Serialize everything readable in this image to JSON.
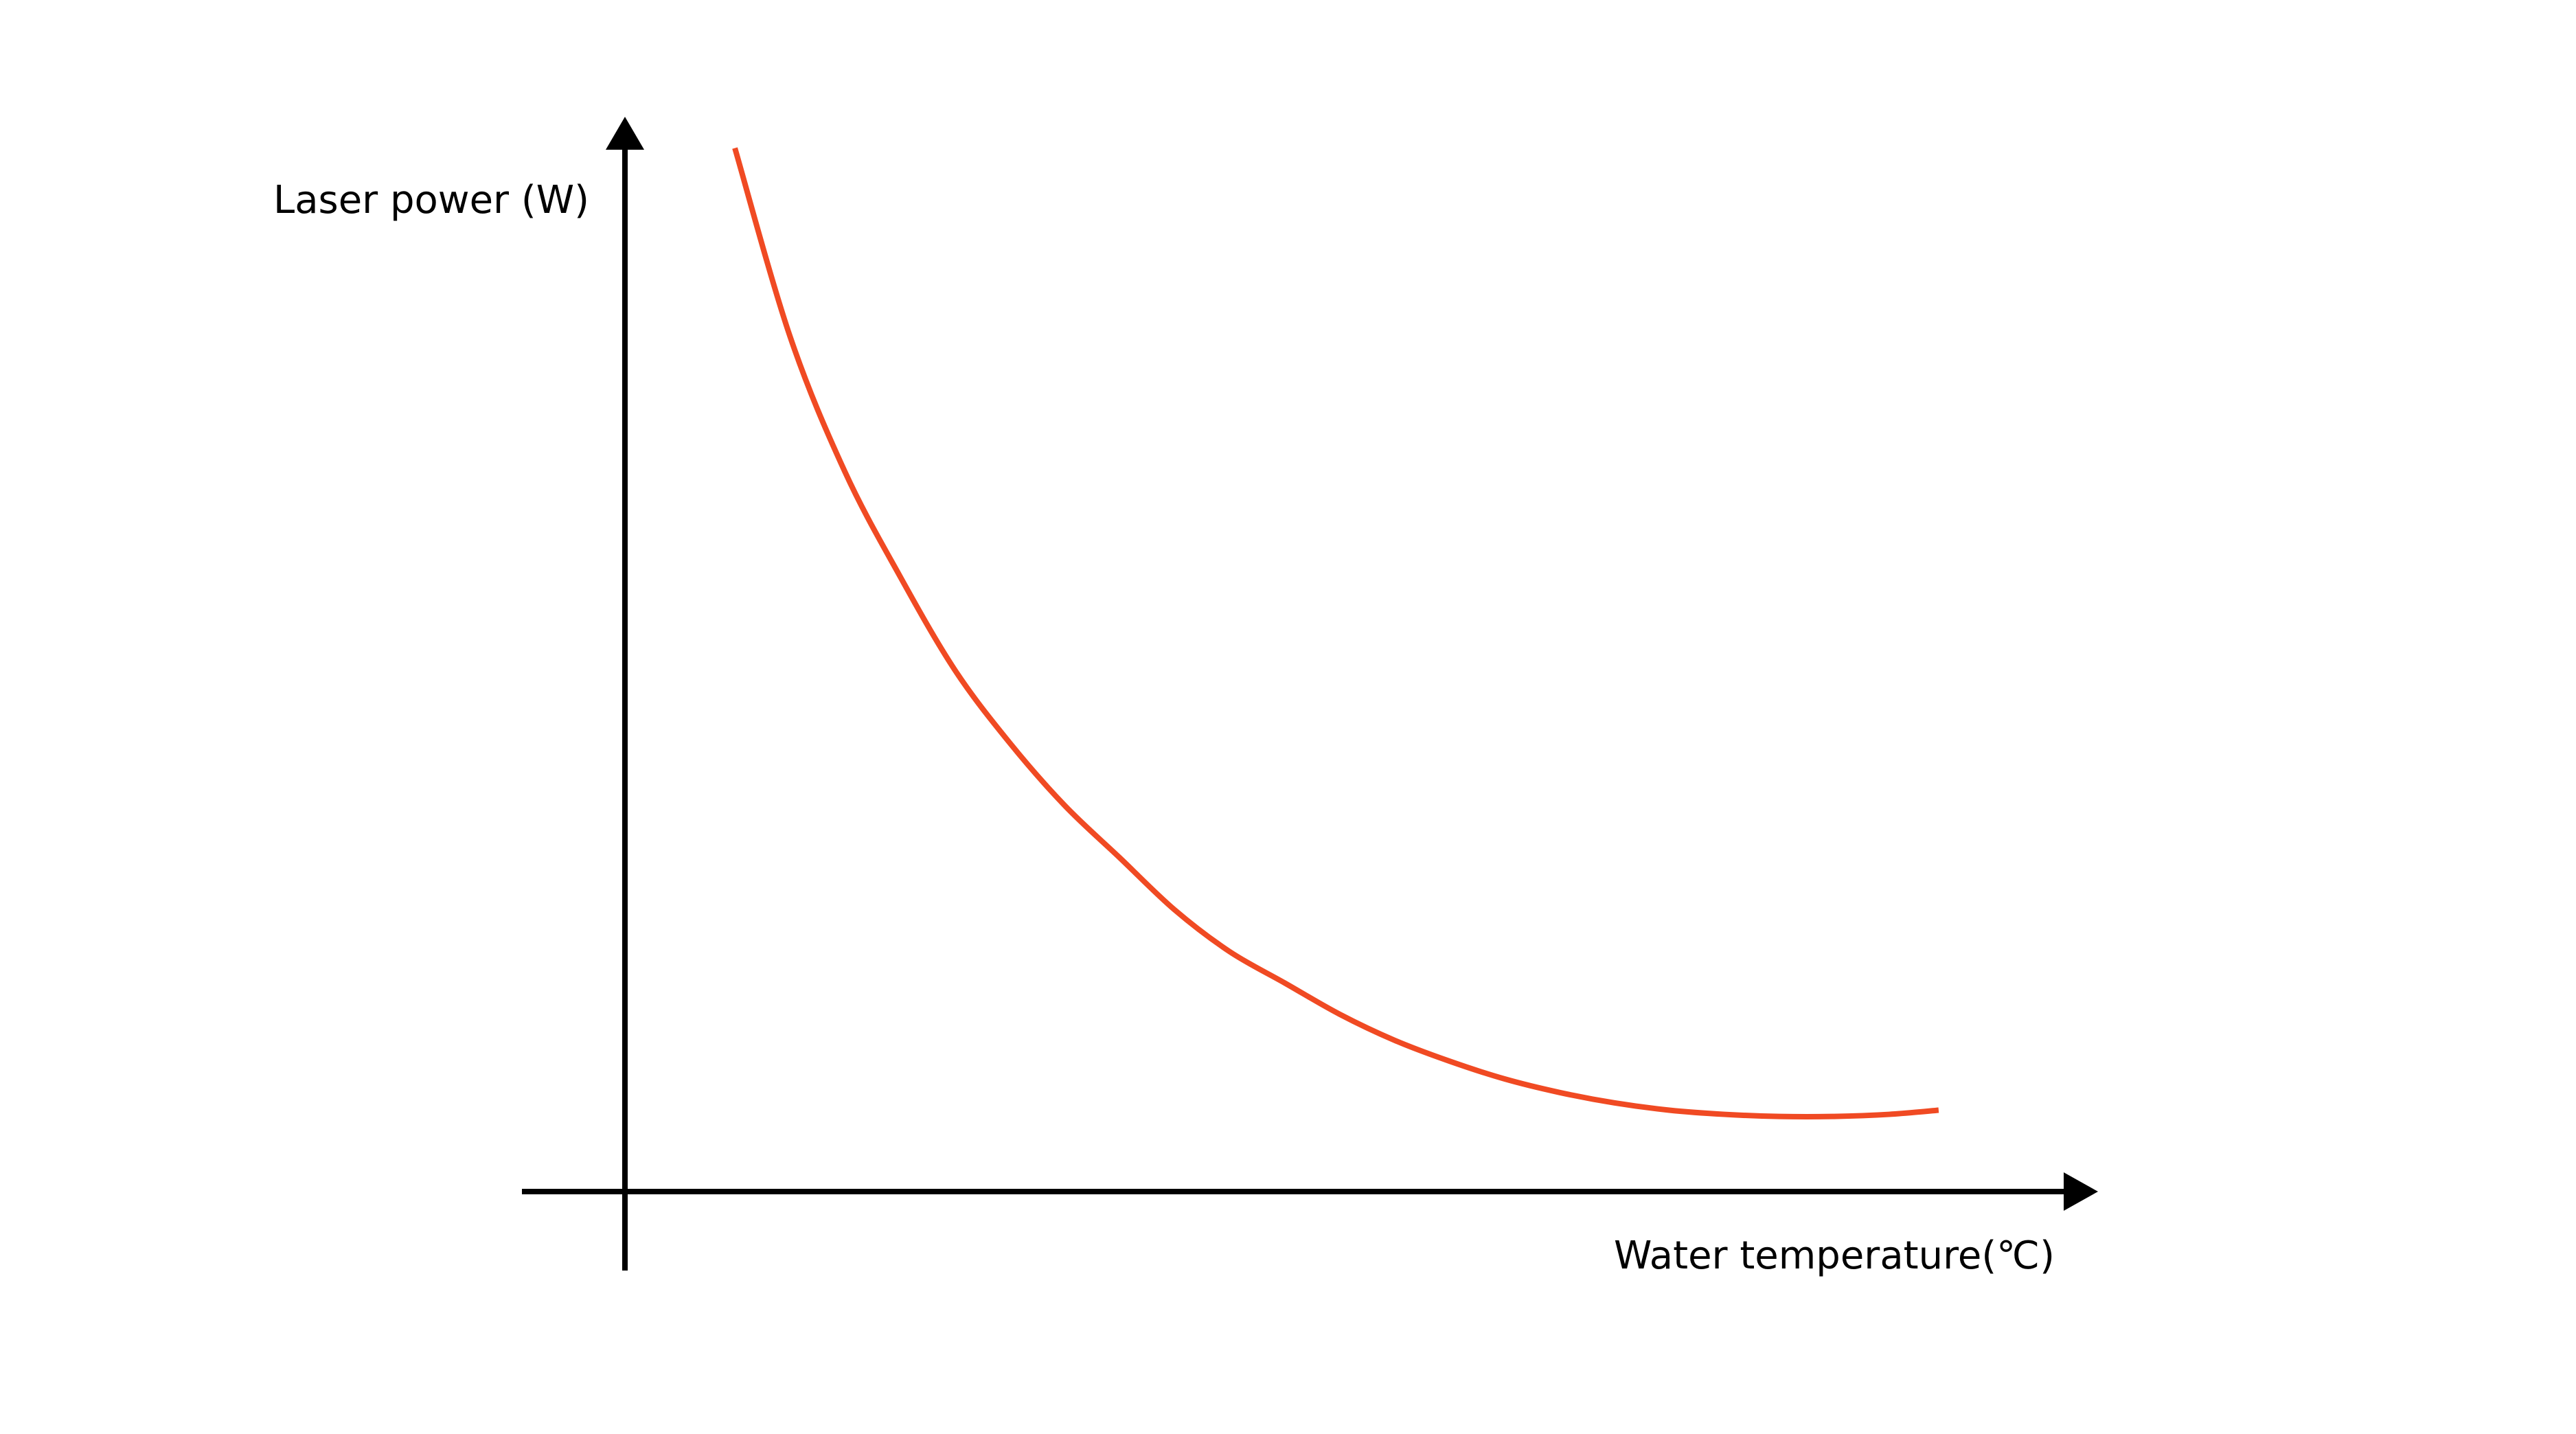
{
  "chart_data": {
    "type": "line",
    "title": "",
    "xlabel": "Water temperature(℃)",
    "ylabel": "Laser power (W)",
    "x_ticks": [],
    "y_ticks": [],
    "grid": false,
    "legend": "none",
    "xlim": [
      0,
      13.4
    ],
    "ylim": [
      0,
      10.3
    ],
    "series": [
      {
        "color": "#f04a23",
        "points": [
          [
            1.0,
            10.0
          ],
          [
            1.5,
            8.2
          ],
          [
            2.0,
            6.9
          ],
          [
            2.5,
            5.9
          ],
          [
            3.0,
            5.0
          ],
          [
            3.5,
            4.3
          ],
          [
            4.0,
            3.7
          ],
          [
            4.5,
            3.2
          ],
          [
            5.0,
            2.7
          ],
          [
            5.5,
            2.3
          ],
          [
            6.0,
            2.0
          ],
          [
            6.5,
            1.7
          ],
          [
            7.0,
            1.45
          ],
          [
            7.5,
            1.25
          ],
          [
            8.0,
            1.08
          ],
          [
            8.5,
            0.95
          ],
          [
            9.0,
            0.85
          ],
          [
            9.5,
            0.78
          ],
          [
            10.0,
            0.74
          ],
          [
            10.5,
            0.72
          ],
          [
            11.0,
            0.72
          ],
          [
            11.5,
            0.74
          ],
          [
            11.95,
            0.78
          ]
        ]
      }
    ],
    "colors": {
      "axis": "#000000",
      "curve": "#f04a23",
      "background": "#ffffff"
    }
  }
}
